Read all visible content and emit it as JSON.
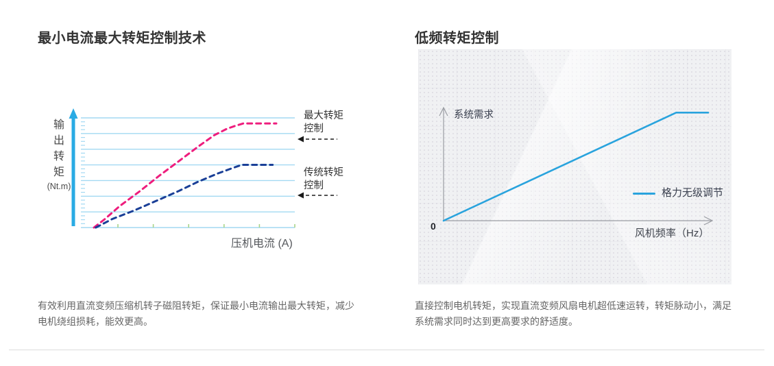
{
  "page": {
    "left": {
      "title": "最小电流最大转矩控制技术",
      "y_axis_chars": [
        "输",
        "出",
        "转",
        "矩"
      ],
      "y_axis_unit": "(Nt.m)",
      "x_axis_label": "压机电流 (A)",
      "annotations": [
        {
          "line1": "最大转矩",
          "line2": "控制"
        },
        {
          "line1": "传统转矩",
          "line2": "控制"
        }
      ],
      "description": "有效利用直流变频压缩机转子磁阻转矩，保证最小电流输出最大转矩，减少电机绕组损耗，能效更高。"
    },
    "right": {
      "title": "低频转矩控制",
      "y_axis_label": "系统需求",
      "origin_label": "0",
      "x_axis_label": "风机频率（Hz）",
      "legend_label": "格力无级调节",
      "description": "直接控制电机转矩，实现直流变频风扇电机超低速运转，转矩脉动小，满足系统需求同时达到更高要求的舒适度。"
    },
    "colors": {
      "max_torque_curve": "#ee1d7d",
      "traditional_torque_curve": "#1a3f97",
      "gridline_blue": "#a2d9f2",
      "axis_blue_arrow": "#2aabe4",
      "bottom_tick_green": "#a8d488",
      "gree_line_blue": "#29a3dd",
      "panel_axis_gray": "#9a9da3",
      "annotation_arrow": "#1a1a1a"
    }
  },
  "chart_data": [
    {
      "type": "line",
      "title": "最小电流最大转矩控制技术",
      "xlabel": "压机电流 (A)",
      "ylabel": "输出转矩 (Nt.m)",
      "axis_ranges": "conceptual (no numeric ticks shown), values normalized 0-100",
      "grid": "horizontal light-blue lines, 8 lines with 3 minor ticks per interval",
      "legend_position": "right-side annotations with dashed arrows",
      "series": [
        {
          "name": "最大转矩控制",
          "color": "#ee1d7d",
          "style": "dashed",
          "points": [
            [
              0,
              0
            ],
            [
              6,
              8
            ],
            [
              14,
              20
            ],
            [
              25,
              34
            ],
            [
              36,
              49
            ],
            [
              47,
              63
            ],
            [
              57,
              76
            ],
            [
              66,
              87
            ],
            [
              73,
              93
            ],
            [
              78,
              96
            ],
            [
              82,
              98
            ],
            [
              100,
              98
            ]
          ]
        },
        {
          "name": "传统转矩控制",
          "color": "#1a3f97",
          "style": "dashed",
          "points": [
            [
              1,
              0
            ],
            [
              10,
              8
            ],
            [
              22,
              16
            ],
            [
              34,
              25
            ],
            [
              46,
              34
            ],
            [
              57,
              43
            ],
            [
              68,
              51
            ],
            [
              76,
              56
            ],
            [
              81,
              59
            ],
            [
              84,
              59
            ],
            [
              98,
              59
            ]
          ]
        }
      ]
    },
    {
      "type": "line",
      "title": "低频转矩控制",
      "xlabel": "风机频率（Hz）",
      "ylabel": "系统需求",
      "origin_label": "0",
      "axis_ranges": "conceptual (no numeric ticks shown), values normalized 0-100",
      "grid": "off",
      "legend_position": "center-right inside panel",
      "series": [
        {
          "name": "格力无级调节",
          "color": "#29a3dd",
          "style": "solid",
          "points": [
            [
              0,
              0
            ],
            [
              87,
              95
            ],
            [
              99,
              95
            ]
          ]
        }
      ]
    }
  ]
}
